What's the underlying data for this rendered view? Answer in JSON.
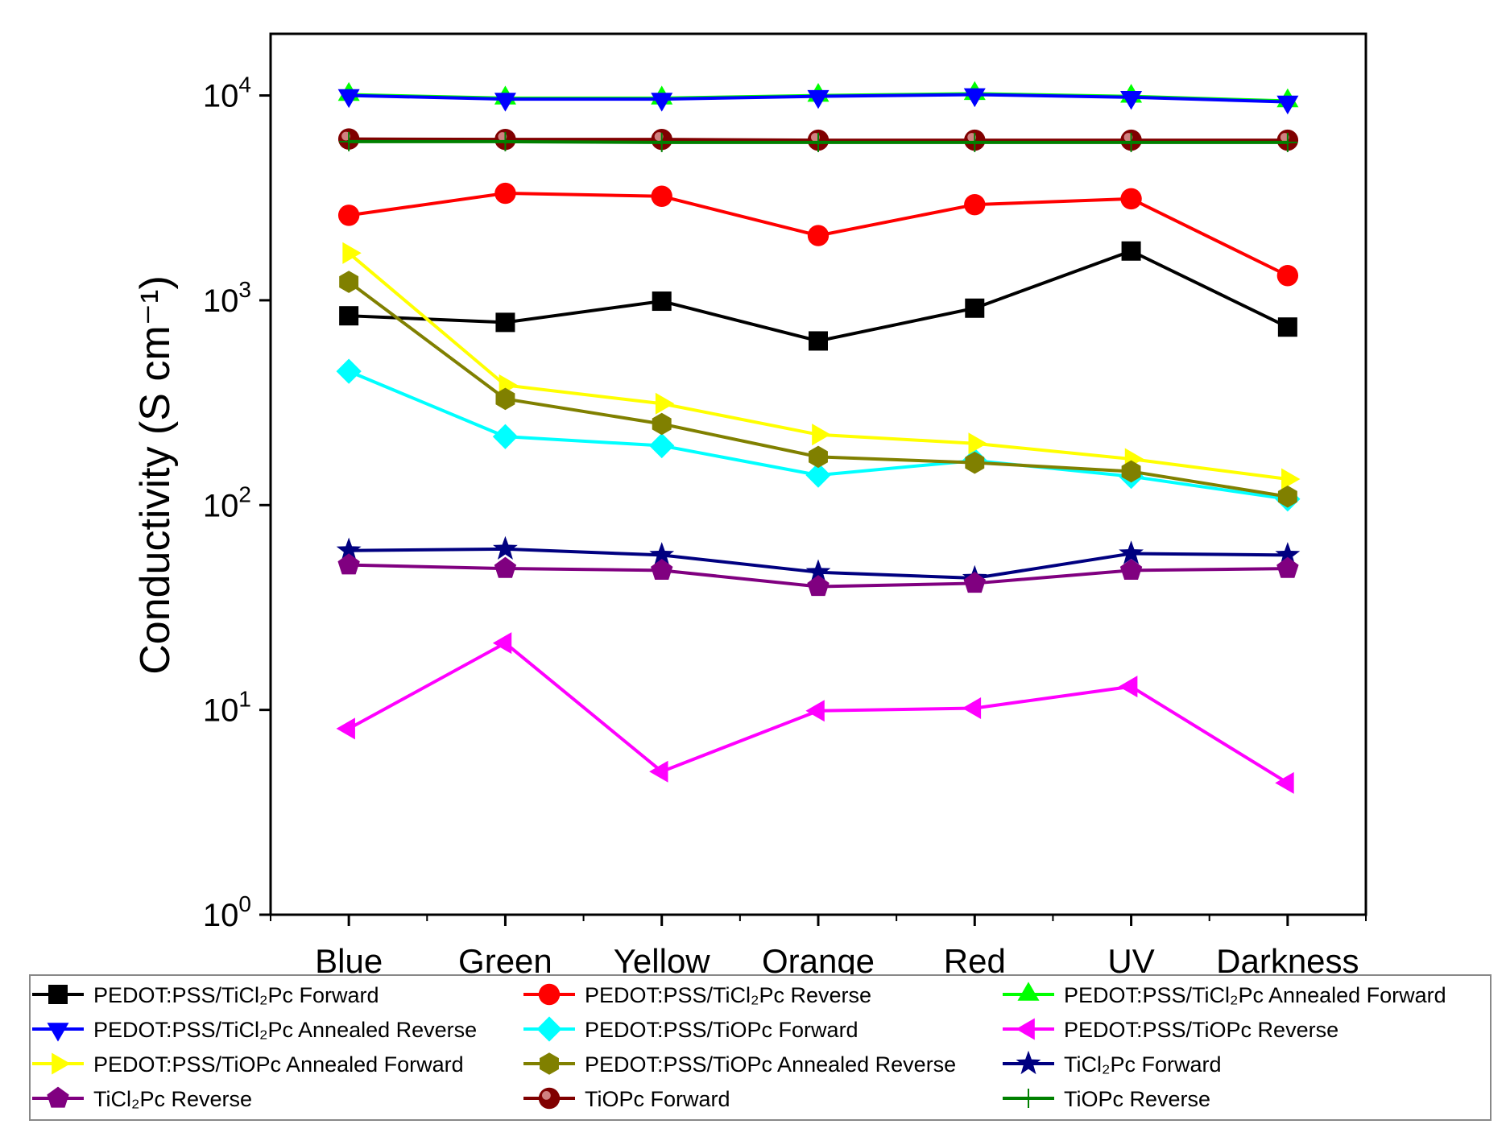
{
  "chart_data": {
    "type": "line",
    "title": "",
    "xlabel": "",
    "ylabel": "Conductivity (S cm⁻¹)",
    "yscale": "log",
    "ylim": [
      1,
      20000
    ],
    "xlim": [
      0.5,
      7.5
    ],
    "grid": false,
    "legend_placement": "bottom",
    "categories": [
      "Blue",
      "Green",
      "Yellow",
      "Orange",
      "Red",
      "UV",
      "Darkness"
    ],
    "y_ticks": [
      {
        "value": 1,
        "base": "10",
        "exp": "0"
      },
      {
        "value": 10,
        "base": "10",
        "exp": "1"
      },
      {
        "value": 100,
        "base": "10",
        "exp": "2"
      },
      {
        "value": 1000,
        "base": "10",
        "exp": "3"
      },
      {
        "value": 10000,
        "base": "10",
        "exp": "4"
      }
    ],
    "series": [
      {
        "name": "PEDOT:PSS/TiCl₂Pc Forward",
        "color": "#000000",
        "marker": "square",
        "values": [
          840,
          780,
          990,
          633,
          915,
          1740,
          740
        ]
      },
      {
        "name": "PEDOT:PSS/TiCl₂Pc Reverse",
        "color": "#ff0000",
        "marker": "circle",
        "values": [
          2600,
          3330,
          3220,
          2070,
          2930,
          3130,
          1320
        ]
      },
      {
        "name": "PEDOT:PSS/TiCl₂Pc Annealed Forward",
        "color": "#00ff00",
        "marker": "triangle-up",
        "values": [
          10100,
          9700,
          9700,
          10000,
          10200,
          9900,
          9400
        ]
      },
      {
        "name": "PEDOT:PSS/TiCl₂Pc Annealed Reverse",
        "color": "#0000ff",
        "marker": "triangle-down",
        "values": [
          10000,
          9600,
          9600,
          9900,
          10100,
          9800,
          9300
        ]
      },
      {
        "name": "PEDOT:PSS/TiOPc Forward",
        "color": "#00ffff",
        "marker": "diamond",
        "values": [
          450,
          216,
          195,
          140,
          165,
          138,
          107
        ]
      },
      {
        "name": "PEDOT:PSS/TiOPc Reverse",
        "color": "#ff00ff",
        "marker": "triangle-left",
        "values": [
          8.1,
          21.2,
          5.0,
          9.9,
          10.2,
          13,
          4.4
        ]
      },
      {
        "name": "PEDOT:PSS/TiOPc Annealed Forward",
        "color": "#ffff00",
        "marker": "triangle-right",
        "values": [
          1700,
          385,
          313,
          221,
          200,
          168,
          134
        ]
      },
      {
        "name": "PEDOT:PSS/TiOPc Annealed Reverse",
        "color": "#808000",
        "marker": "hexagon",
        "values": [
          1230,
          330,
          249,
          172,
          161,
          146,
          110
        ]
      },
      {
        "name": "TiCl₂Pc Forward",
        "color": "#000080",
        "marker": "star",
        "values": [
          60,
          61,
          57,
          47,
          44,
          58,
          57
        ]
      },
      {
        "name": "TiCl₂Pc Reverse",
        "color": "#800080",
        "marker": "pentagon",
        "values": [
          51,
          49,
          48,
          40,
          41.5,
          48,
          49
        ]
      },
      {
        "name": "TiOPc Forward",
        "color": "#800000",
        "marker": "sphere",
        "values": [
          6130,
          6100,
          6100,
          6050,
          6050,
          6050,
          6050
        ]
      },
      {
        "name": "TiOPc Reverse",
        "color": "#008000",
        "marker": "plus",
        "values": [
          5950,
          5950,
          5900,
          5900,
          5900,
          5900,
          5900
        ]
      }
    ]
  }
}
